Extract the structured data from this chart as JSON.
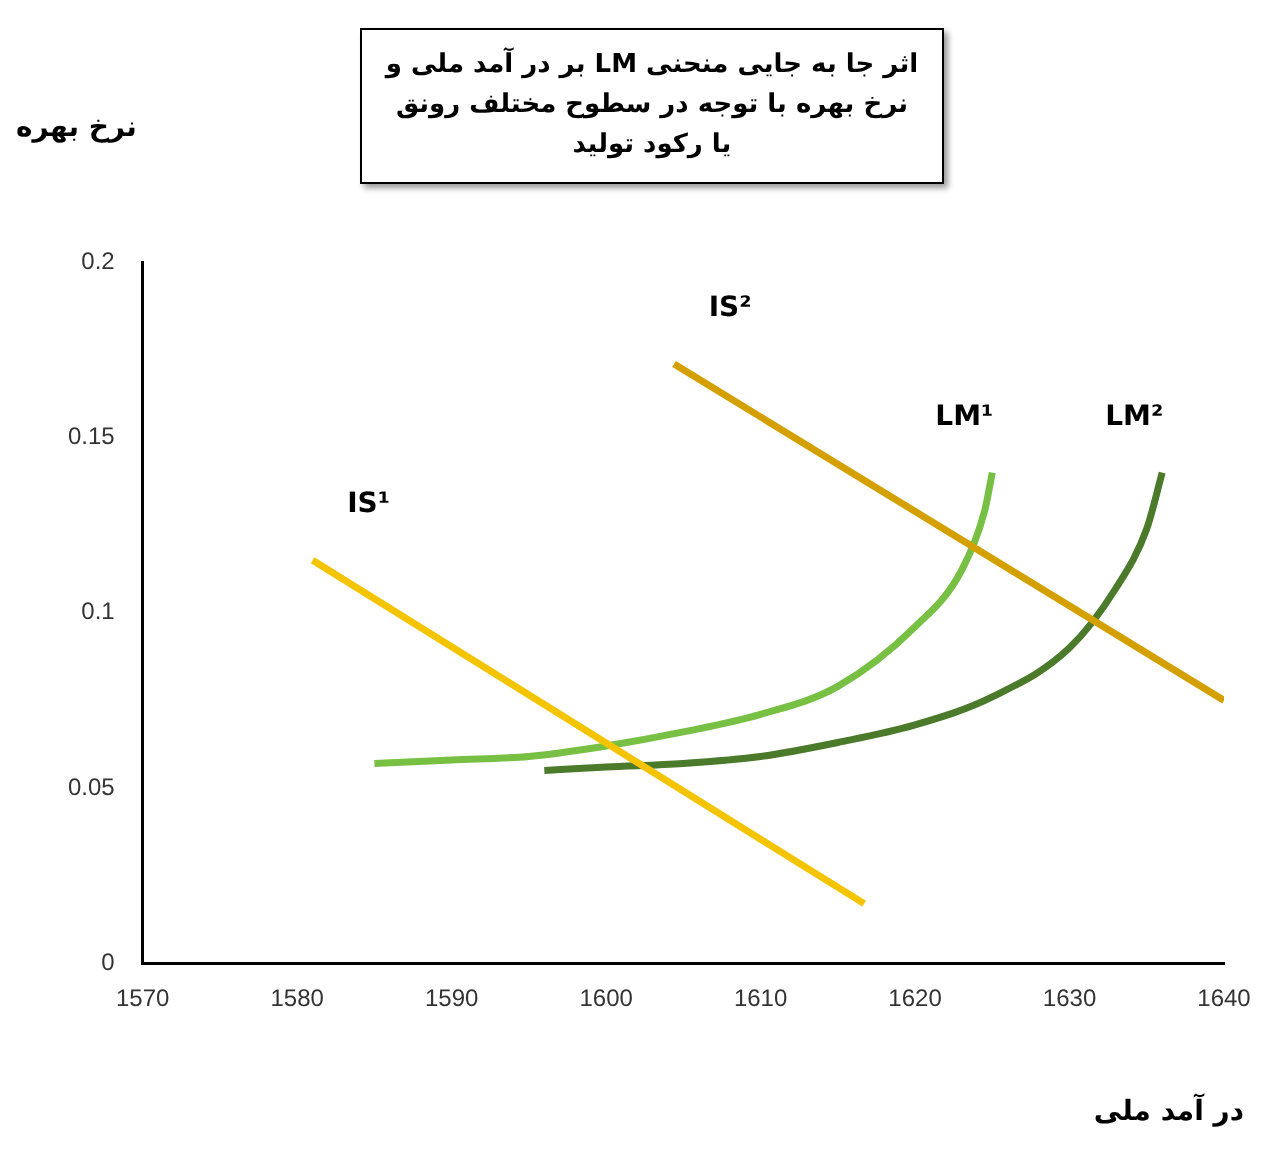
{
  "chart_data": {
    "type": "line",
    "title": "اثر جا به جایی منحنی LM بر در آمد ملی و نرخ بهره با توجه در سطوح مختلف رونق یا رکود تولید",
    "xlabel": "در آمد ملی",
    "ylabel": "نرخ بهره",
    "xlim": [
      1570,
      1640
    ],
    "xticks": [
      1570,
      1580,
      1590,
      1600,
      1610,
      1620,
      1630,
      1640
    ],
    "ylim": [
      0,
      0.2
    ],
    "yticks": [
      0,
      0.05,
      0.1,
      0.15,
      0.2
    ],
    "grid": false,
    "legend": false,
    "marker": "none",
    "line_style": "solid",
    "series": [
      {
        "name": "IS¹",
        "color": "#f5c400",
        "x": [
          1581,
          1616.7
        ],
        "values": [
          0.115,
          0.017
        ]
      },
      {
        "name": "IS²",
        "color": "#d4a000",
        "x": [
          1604.4,
          1640
        ],
        "values": [
          0.171,
          0.075
        ]
      },
      {
        "name": "LM¹",
        "color": "#77c043",
        "x": [
          1585,
          1590,
          1595,
          1600,
          1605,
          1610,
          1615,
          1620,
          1623,
          1624.5,
          1625
        ],
        "values": [
          0.057,
          0.058,
          0.059,
          0.062,
          0.066,
          0.071,
          0.079,
          0.096,
          0.112,
          0.129,
          0.14
        ]
      },
      {
        "name": "LM²",
        "color": "#4a7a2a",
        "x": [
          1596,
          1600,
          1605,
          1610,
          1615,
          1620,
          1625,
          1630,
          1633,
          1635,
          1636
        ],
        "values": [
          0.055,
          0.056,
          0.057,
          0.059,
          0.063,
          0.068,
          0.076,
          0.09,
          0.107,
          0.124,
          0.14
        ]
      }
    ]
  }
}
